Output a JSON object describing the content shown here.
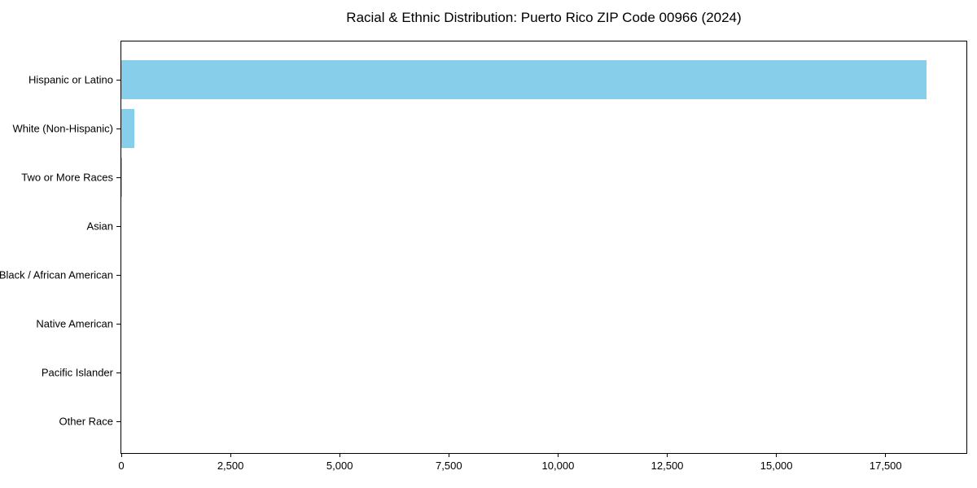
{
  "title": "Racial & Ethnic Distribution: Puerto Rico ZIP Code 00966 (2024)",
  "colors": {
    "bar": "#87CEEB",
    "axis": "#000000",
    "text": "#000000",
    "background": "#FFFFFF"
  },
  "chart_data": {
    "type": "bar",
    "orientation": "horizontal",
    "title": "Racial & Ethnic Distribution: Puerto Rico ZIP Code 00966 (2024)",
    "categories": [
      "Hispanic or Latino",
      "White (Non-Hispanic)",
      "Two or More Races",
      "Asian",
      "Black / African American",
      "Native American",
      "Pacific Islander",
      "Other Race"
    ],
    "values": [
      18430,
      300,
      20,
      0,
      0,
      0,
      0,
      0
    ],
    "xlabel": "",
    "ylabel": "",
    "xlim": [
      0,
      19350
    ],
    "xticks": [
      {
        "value": 0,
        "label": "0"
      },
      {
        "value": 2500,
        "label": "2,500"
      },
      {
        "value": 5000,
        "label": "5,000"
      },
      {
        "value": 7500,
        "label": "7,500"
      },
      {
        "value": 10000,
        "label": "10,000"
      },
      {
        "value": 12500,
        "label": "12,500"
      },
      {
        "value": 15000,
        "label": "15,000"
      },
      {
        "value": 17500,
        "label": "17,500"
      }
    ],
    "grid": false,
    "legend": false,
    "bar_color": "#87CEEB",
    "categories_top_to_bottom": true
  }
}
